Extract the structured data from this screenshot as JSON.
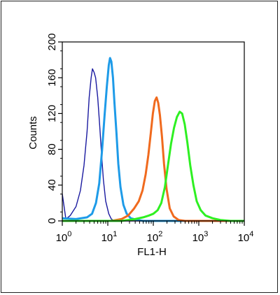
{
  "chart_data": {
    "type": "histogram",
    "xlabel": "FL1-H",
    "ylabel": "Counts",
    "xscale": "log",
    "xlim": [
      1,
      10000
    ],
    "ylim": [
      0,
      200
    ],
    "grid": false,
    "x_ticks": [
      {
        "base": "10",
        "exp": "0"
      },
      {
        "base": "10",
        "exp": "1"
      },
      {
        "base": "10",
        "exp": "2"
      },
      {
        "base": "10",
        "exp": "3"
      },
      {
        "base": "10",
        "exp": "4"
      }
    ],
    "y_ticks": [
      "0",
      "40",
      "80",
      "120",
      "160",
      "200"
    ],
    "series": [
      {
        "color": "#1a1aa0",
        "stroke_width": 1.4,
        "points": [
          [
            1.0,
            30
          ],
          [
            1.08,
            18
          ],
          [
            1.2,
            2
          ],
          [
            1.5,
            6
          ],
          [
            2.0,
            16
          ],
          [
            2.5,
            34
          ],
          [
            3.0,
            62
          ],
          [
            3.5,
            100
          ],
          [
            3.9,
            138
          ],
          [
            4.3,
            160
          ],
          [
            4.6,
            170
          ],
          [
            5.0,
            166
          ],
          [
            5.4,
            160
          ],
          [
            6.0,
            138
          ],
          [
            6.6,
            108
          ],
          [
            7.3,
            74
          ],
          [
            8.0,
            46
          ],
          [
            9.0,
            22
          ],
          [
            10.5,
            8
          ],
          [
            12,
            2
          ],
          [
            14,
            0
          ],
          [
            10000,
            0
          ]
        ]
      },
      {
        "color": "#1e9be8",
        "stroke_width": 3,
        "points": [
          [
            1.0,
            3
          ],
          [
            2.0,
            2
          ],
          [
            3.5,
            4
          ],
          [
            4.5,
            8
          ],
          [
            5.5,
            20
          ],
          [
            6.5,
            42
          ],
          [
            7.5,
            80
          ],
          [
            8.5,
            118
          ],
          [
            9.5,
            150
          ],
          [
            10.5,
            174
          ],
          [
            11.2,
            182
          ],
          [
            12.0,
            178
          ],
          [
            13,
            160
          ],
          [
            14,
            132
          ],
          [
            15.5,
            98
          ],
          [
            17,
            64
          ],
          [
            19,
            38
          ],
          [
            22,
            18
          ],
          [
            26,
            8
          ],
          [
            32,
            3
          ],
          [
            45,
            1
          ],
          [
            60,
            0
          ],
          [
            10000,
            0
          ]
        ]
      },
      {
        "color": "#f06a1e",
        "stroke_width": 3,
        "points": [
          [
            1.0,
            0
          ],
          [
            12,
            0
          ],
          [
            20,
            2
          ],
          [
            28,
            6
          ],
          [
            38,
            14
          ],
          [
            48,
            22
          ],
          [
            58,
            34
          ],
          [
            68,
            52
          ],
          [
            78,
            74
          ],
          [
            88,
            98
          ],
          [
            98,
            120
          ],
          [
            108,
            134
          ],
          [
            118,
            138
          ],
          [
            128,
            132
          ],
          [
            140,
            118
          ],
          [
            155,
            94
          ],
          [
            172,
            64
          ],
          [
            195,
            36
          ],
          [
            230,
            14
          ],
          [
            280,
            5
          ],
          [
            360,
            1
          ],
          [
            500,
            0
          ],
          [
            10000,
            0
          ]
        ]
      },
      {
        "color": "#2ef022",
        "stroke_width": 3,
        "points": [
          [
            1.0,
            0
          ],
          [
            20,
            0
          ],
          [
            40,
            2
          ],
          [
            60,
            4
          ],
          [
            80,
            6
          ],
          [
            100,
            8
          ],
          [
            125,
            12
          ],
          [
            150,
            20
          ],
          [
            180,
            38
          ],
          [
            210,
            62
          ],
          [
            245,
            86
          ],
          [
            285,
            104
          ],
          [
            330,
            116
          ],
          [
            380,
            122
          ],
          [
            430,
            120
          ],
          [
            490,
            108
          ],
          [
            560,
            88
          ],
          [
            650,
            62
          ],
          [
            760,
            40
          ],
          [
            900,
            22
          ],
          [
            1100,
            12
          ],
          [
            1400,
            6
          ],
          [
            2000,
            3
          ],
          [
            3000,
            1
          ],
          [
            5000,
            0
          ],
          [
            10000,
            0
          ]
        ]
      }
    ]
  }
}
